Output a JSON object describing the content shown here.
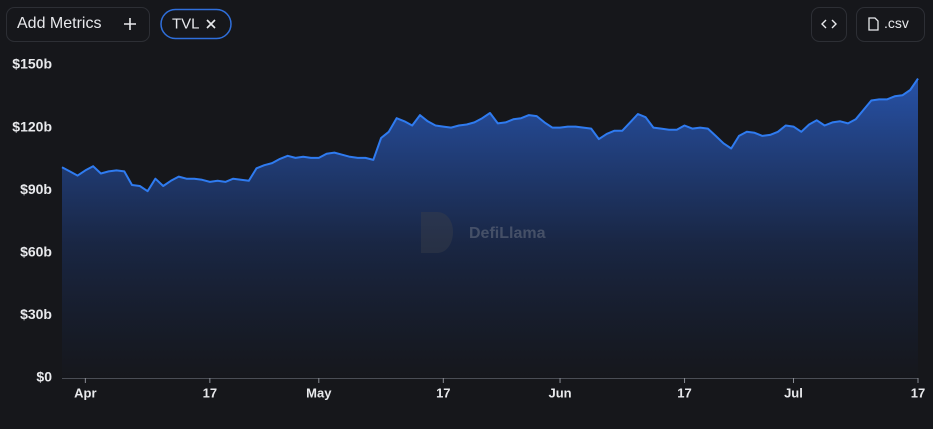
{
  "toolbar": {
    "add_metrics": "Add Metrics",
    "metric": "TVL",
    "csv": ".csv"
  },
  "watermark": "DefiLlama",
  "chart_data": {
    "type": "area",
    "categories": [
      null,
      null,
      null,
      "Apr",
      null,
      null,
      null,
      null,
      null,
      null,
      null,
      null,
      null,
      null,
      null,
      null,
      null,
      null,
      null,
      "17",
      null,
      null,
      null,
      null,
      null,
      null,
      null,
      null,
      null,
      null,
      null,
      null,
      null,
      "May",
      null,
      null,
      null,
      null,
      null,
      null,
      null,
      null,
      null,
      null,
      null,
      null,
      null,
      null,
      null,
      "17",
      null,
      null,
      null,
      null,
      null,
      null,
      null,
      null,
      null,
      null,
      null,
      null,
      null,
      null,
      "Jun",
      null,
      null,
      null,
      null,
      null,
      null,
      null,
      null,
      null,
      null,
      null,
      null,
      null,
      null,
      null,
      "17",
      null,
      null,
      null,
      null,
      null,
      null,
      null,
      null,
      null,
      null,
      null,
      null,
      null,
      "Jul",
      null,
      null,
      null,
      null,
      null,
      null,
      null,
      null,
      null,
      null,
      null,
      null,
      null,
      null,
      null,
      "17"
    ],
    "series": [
      {
        "name": "TVL",
        "color": "#2f7bf0",
        "values": [
          101,
          99,
          97,
          99.5,
          101.5,
          98,
          99,
          99.5,
          99,
          92.5,
          92,
          89.5,
          95.5,
          92,
          94.5,
          96.5,
          95.5,
          95.5,
          95,
          94,
          94.5,
          94,
          95.5,
          95,
          94.5,
          100.5,
          102,
          103,
          105,
          106.5,
          105.5,
          106,
          105.5,
          105.5,
          107.5,
          108,
          107,
          106,
          105.5,
          105.5,
          104.5,
          115,
          118,
          124.5,
          123,
          121,
          126,
          123,
          121,
          120.5,
          120,
          121,
          121.5,
          122.5,
          124.5,
          127,
          122,
          122.5,
          124,
          124.5,
          126,
          125.5,
          122.5,
          120,
          120,
          120.5,
          120.5,
          120,
          119.5,
          114.5,
          117,
          118.5,
          118.5,
          122.5,
          126.5,
          125,
          120,
          119.5,
          119,
          119,
          121,
          119.5,
          120,
          119.5,
          116,
          112.5,
          110,
          116,
          118,
          117.5,
          116,
          116.5,
          118,
          121,
          120.5,
          118,
          121.5,
          123.5,
          121,
          122.5,
          123,
          122,
          124,
          128.5,
          133,
          133.5,
          133.5,
          135,
          135.5,
          138,
          143.5
        ]
      }
    ],
    "ylim": [
      0,
      150
    ],
    "yticks": [
      {
        "value": 0,
        "label": "$0"
      },
      {
        "value": 30,
        "label": "$30b"
      },
      {
        "value": 60,
        "label": "$60b"
      },
      {
        "value": 90,
        "label": "$90b"
      },
      {
        "value": 120,
        "label": "$120b"
      },
      {
        "value": 150,
        "label": "$150b"
      }
    ],
    "grid": false
  }
}
